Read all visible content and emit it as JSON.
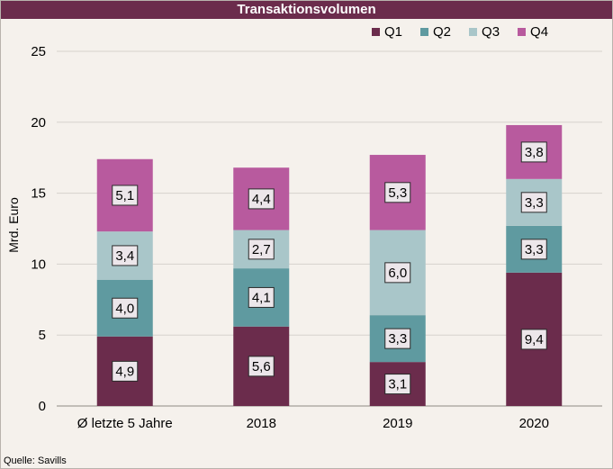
{
  "chart_data": {
    "type": "bar",
    "stacked": true,
    "title": "Transaktionsvolumen",
    "ylabel": "Mrd. Euro",
    "xlabel": "",
    "categories": [
      "Ø letzte 5 Jahre",
      "2018",
      "2019",
      "2020"
    ],
    "series": [
      {
        "name": "Q1",
        "color": "#6b2c4c",
        "values": [
          4.9,
          5.6,
          3.1,
          9.4
        ],
        "labels": [
          "4,9",
          "5,6",
          "3,1",
          "9,4"
        ]
      },
      {
        "name": "Q2",
        "color": "#5f9aa0",
        "values": [
          4.0,
          4.1,
          3.3,
          3.3
        ],
        "labels": [
          "4,0",
          "4,1",
          "3,3",
          "3,3"
        ]
      },
      {
        "name": "Q3",
        "color": "#a9c6c9",
        "values": [
          3.4,
          2.7,
          6.0,
          3.3
        ],
        "labels": [
          "3,4",
          "2,7",
          "6,0",
          "3,3"
        ]
      },
      {
        "name": "Q4",
        "color": "#b85a9e",
        "values": [
          5.1,
          4.4,
          5.3,
          3.8
        ],
        "labels": [
          "5,1",
          "4,4",
          "5,3",
          "3,8"
        ]
      }
    ],
    "ylim": [
      0,
      25
    ],
    "yticks": [
      0,
      5,
      10,
      15,
      20,
      25
    ],
    "grid": true,
    "legend_position": "top-right"
  },
  "source_note": "Quelle: Savills"
}
